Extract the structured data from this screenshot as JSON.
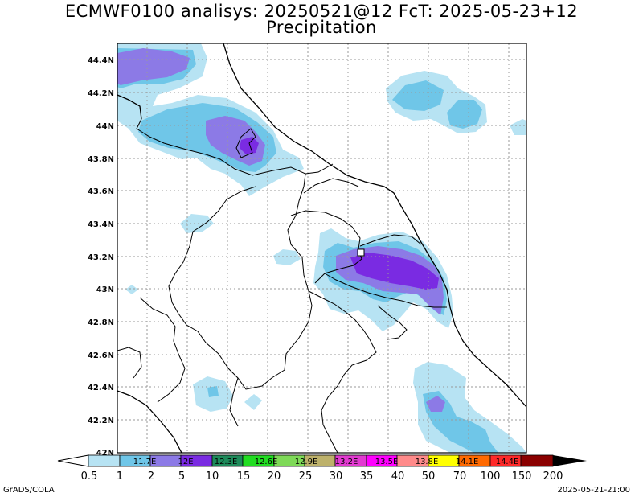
{
  "header": {
    "title": "ECMWF0100 analisys: 20250521@12 FcT: 2025-05-23+12",
    "subtitle": "Precipitation"
  },
  "axis": {
    "lat_labels": [
      "44.4N",
      "44.2N",
      "44N",
      "43.8N",
      "43.6N",
      "43.4N",
      "43.2N",
      "43N",
      "42.8N",
      "42.6N",
      "42.4N",
      "42.2N",
      "42N"
    ]
  },
  "colorbar": {
    "values": [
      "0.5",
      "1",
      "2",
      "5",
      "10",
      "15",
      "20",
      "25",
      "30",
      "35",
      "40",
      "50",
      "70",
      "100",
      "150",
      "200"
    ],
    "box_labels": [
      "11.7E",
      "12E",
      "12.3E",
      "12.6E",
      "12.9E",
      "13.2E",
      "13.5E",
      "13.8E",
      "14.1E",
      "14.4E"
    ],
    "colors": [
      "#b7e3f3",
      "#6fc6e8",
      "#8c7ae6",
      "#7a2be2",
      "#1e8a5a",
      "#22dd22",
      "#7ed957",
      "#bdb16b",
      "#e23ad1",
      "#ff00ff",
      "#ff8a8a",
      "#ffff00",
      "#ff6a00",
      "#ff2a2a",
      "#8a0000"
    ]
  },
  "footer": {
    "left": "GrADS/COLA",
    "right": "2025-05-21-21:00"
  },
  "legend_colors": {
    "light": "#b7e3f3",
    "medium": "#6fc6e8",
    "violet": "#8c7ae6",
    "purple": "#7a2be2"
  }
}
